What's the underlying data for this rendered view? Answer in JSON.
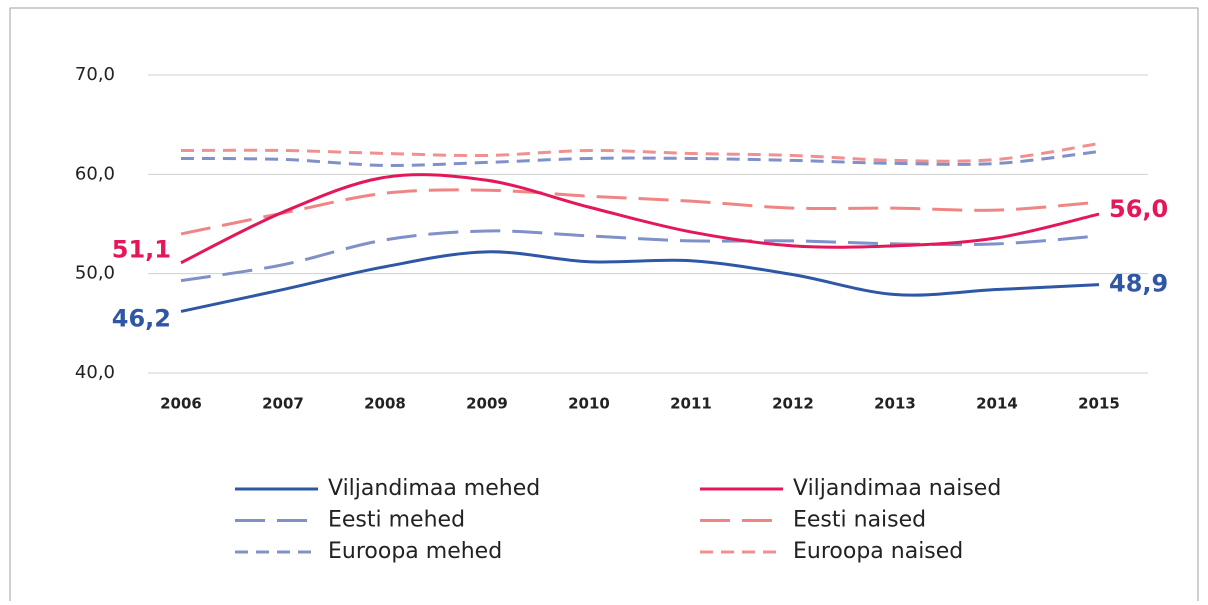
{
  "chart_data": {
    "type": "line",
    "x": [
      2006,
      2007,
      2008,
      2009,
      2010,
      2011,
      2012,
      2013,
      2014,
      2015
    ],
    "ylim": [
      40,
      70
    ],
    "yticks": [
      {
        "value": 40,
        "label": "40,0"
      },
      {
        "value": 50,
        "label": "50,0"
      },
      {
        "value": 60,
        "label": "60,0"
      },
      {
        "value": 70,
        "label": "70,0"
      }
    ],
    "grid": true,
    "legend": "bottom",
    "series": [
      {
        "name": "Viljandimaa mehed",
        "color": "#2e57a6",
        "dash": "solid",
        "values": [
          46.2,
          48.4,
          50.7,
          52.2,
          51.2,
          51.3,
          49.9,
          47.9,
          48.4,
          48.9
        ],
        "value_labels": [
          "46,2",
          null,
          null,
          null,
          null,
          null,
          null,
          null,
          null,
          "48,9"
        ]
      },
      {
        "name": "Viljandimaa naised",
        "color": "#e3175a",
        "dash": "solid",
        "values": [
          51.1,
          56.2,
          59.7,
          59.4,
          56.7,
          54.2,
          52.8,
          52.8,
          53.6,
          56.0
        ],
        "value_labels": [
          "51,1",
          null,
          null,
          null,
          null,
          null,
          null,
          null,
          null,
          "56,0"
        ]
      },
      {
        "name": "Eesti mehed",
        "color": "#8090c8",
        "dash": "long",
        "values": [
          49.3,
          50.9,
          53.4,
          54.3,
          53.8,
          53.3,
          53.3,
          53.0,
          53.0,
          53.8
        ]
      },
      {
        "name": "Eesti naised",
        "color": "#ef8585",
        "dash": "long",
        "values": [
          54.0,
          56.1,
          58.1,
          58.4,
          57.8,
          57.3,
          56.6,
          56.6,
          56.4,
          57.2
        ]
      },
      {
        "name": "Euroopa mehed",
        "color": "#8090c8",
        "dash": "short",
        "values": [
          61.6,
          61.5,
          60.9,
          61.2,
          61.6,
          61.6,
          61.4,
          61.1,
          61.1,
          62.3
        ]
      },
      {
        "name": "Euroopa naised",
        "color": "#f09090",
        "dash": "short",
        "values": [
          62.4,
          62.4,
          62.1,
          61.9,
          62.4,
          62.1,
          61.9,
          61.4,
          61.5,
          63.1
        ]
      }
    ]
  }
}
